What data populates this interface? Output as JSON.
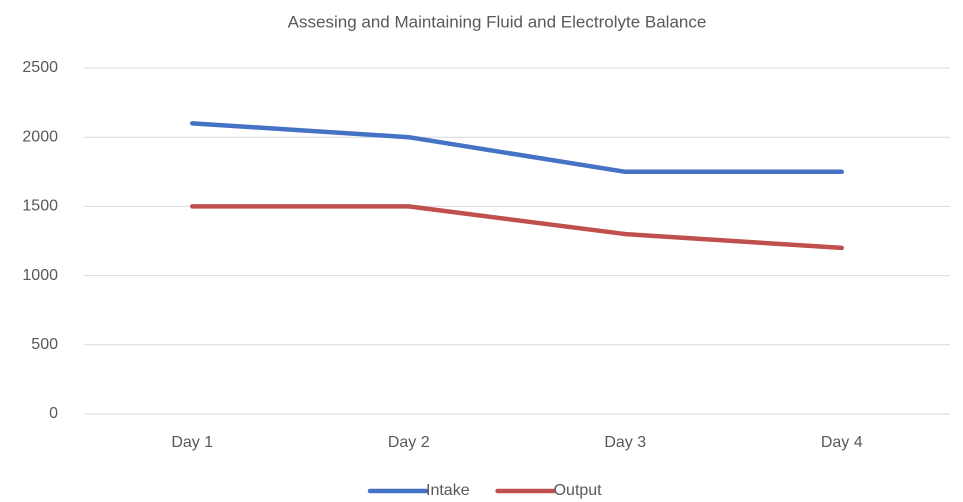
{
  "chart_data": {
    "type": "line",
    "title": "Assesing and Maintaining Fluid and Electrolyte Balance",
    "categories": [
      "Day 1",
      "Day 2",
      "Day 3",
      "Day 4"
    ],
    "series": [
      {
        "name": "Intake",
        "color": "#4472c4",
        "values": [
          2100,
          2000,
          1750,
          1750
        ]
      },
      {
        "name": "Output",
        "color": "#c0504d",
        "values": [
          1500,
          1500,
          1300,
          1200
        ]
      }
    ],
    "ylim": [
      0,
      2500
    ],
    "yticks": [
      0,
      500,
      1000,
      1500,
      2000,
      2500
    ],
    "grid": true,
    "legend": "bottom"
  }
}
